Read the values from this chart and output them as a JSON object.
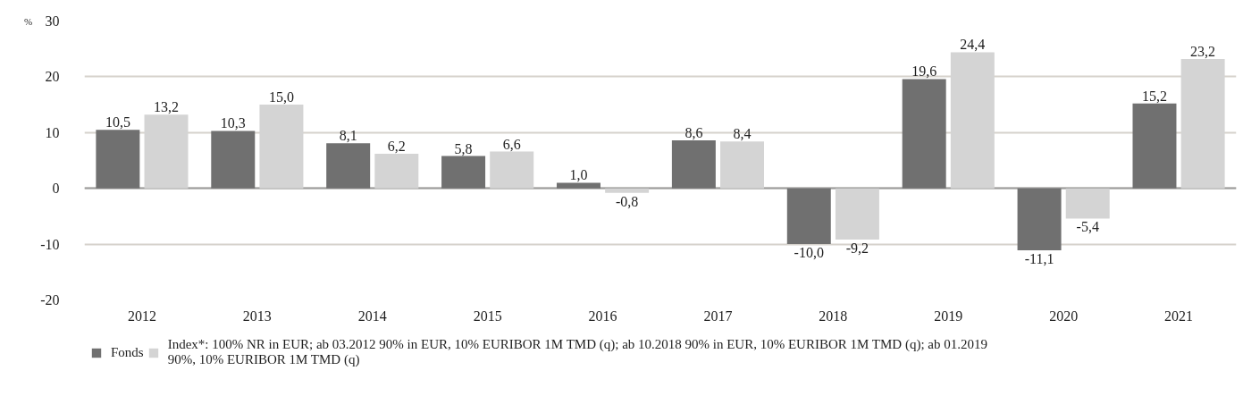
{
  "chart_data": {
    "type": "bar",
    "ylabel": "%",
    "categories": [
      "2012",
      "2013",
      "2014",
      "2015",
      "2016",
      "2017",
      "2018",
      "2019",
      "2020",
      "2021"
    ],
    "series": [
      {
        "name": "Fonds",
        "color": "#707070",
        "values": [
          10.5,
          10.3,
          8.1,
          5.8,
          1.0,
          8.6,
          -10.0,
          19.6,
          -11.1,
          15.2
        ],
        "value_labels": [
          "10,5",
          "10,3",
          "8,1",
          "5,8",
          "1,0",
          "8,6",
          "-10,0",
          "19,6",
          "-11,1",
          "15,2"
        ]
      },
      {
        "name": "Index*: 100% NR in EUR; ab 03.2012 90% in EUR, 10% EURIBOR 1M TMD (q); ab 10.2018 90% in EUR, 10% EURIBOR 1M TMD (q); ab 01.2019 90%, 10% EURIBOR 1M TMD (q)",
        "color": "#d4d4d4",
        "values": [
          13.2,
          15.0,
          6.2,
          6.6,
          -0.8,
          8.4,
          -9.2,
          24.4,
          -5.4,
          23.2
        ],
        "value_labels": [
          "13,2",
          "15,0",
          "6,2",
          "6,6",
          "-0,8",
          "8,4",
          "-9,2",
          "24,4",
          "-5,4",
          "23,2"
        ]
      }
    ],
    "ylim": [
      -20,
      30
    ],
    "yticks": [
      -20,
      -10,
      0,
      10,
      20,
      30
    ],
    "grid": "y",
    "legend": "bottom"
  }
}
